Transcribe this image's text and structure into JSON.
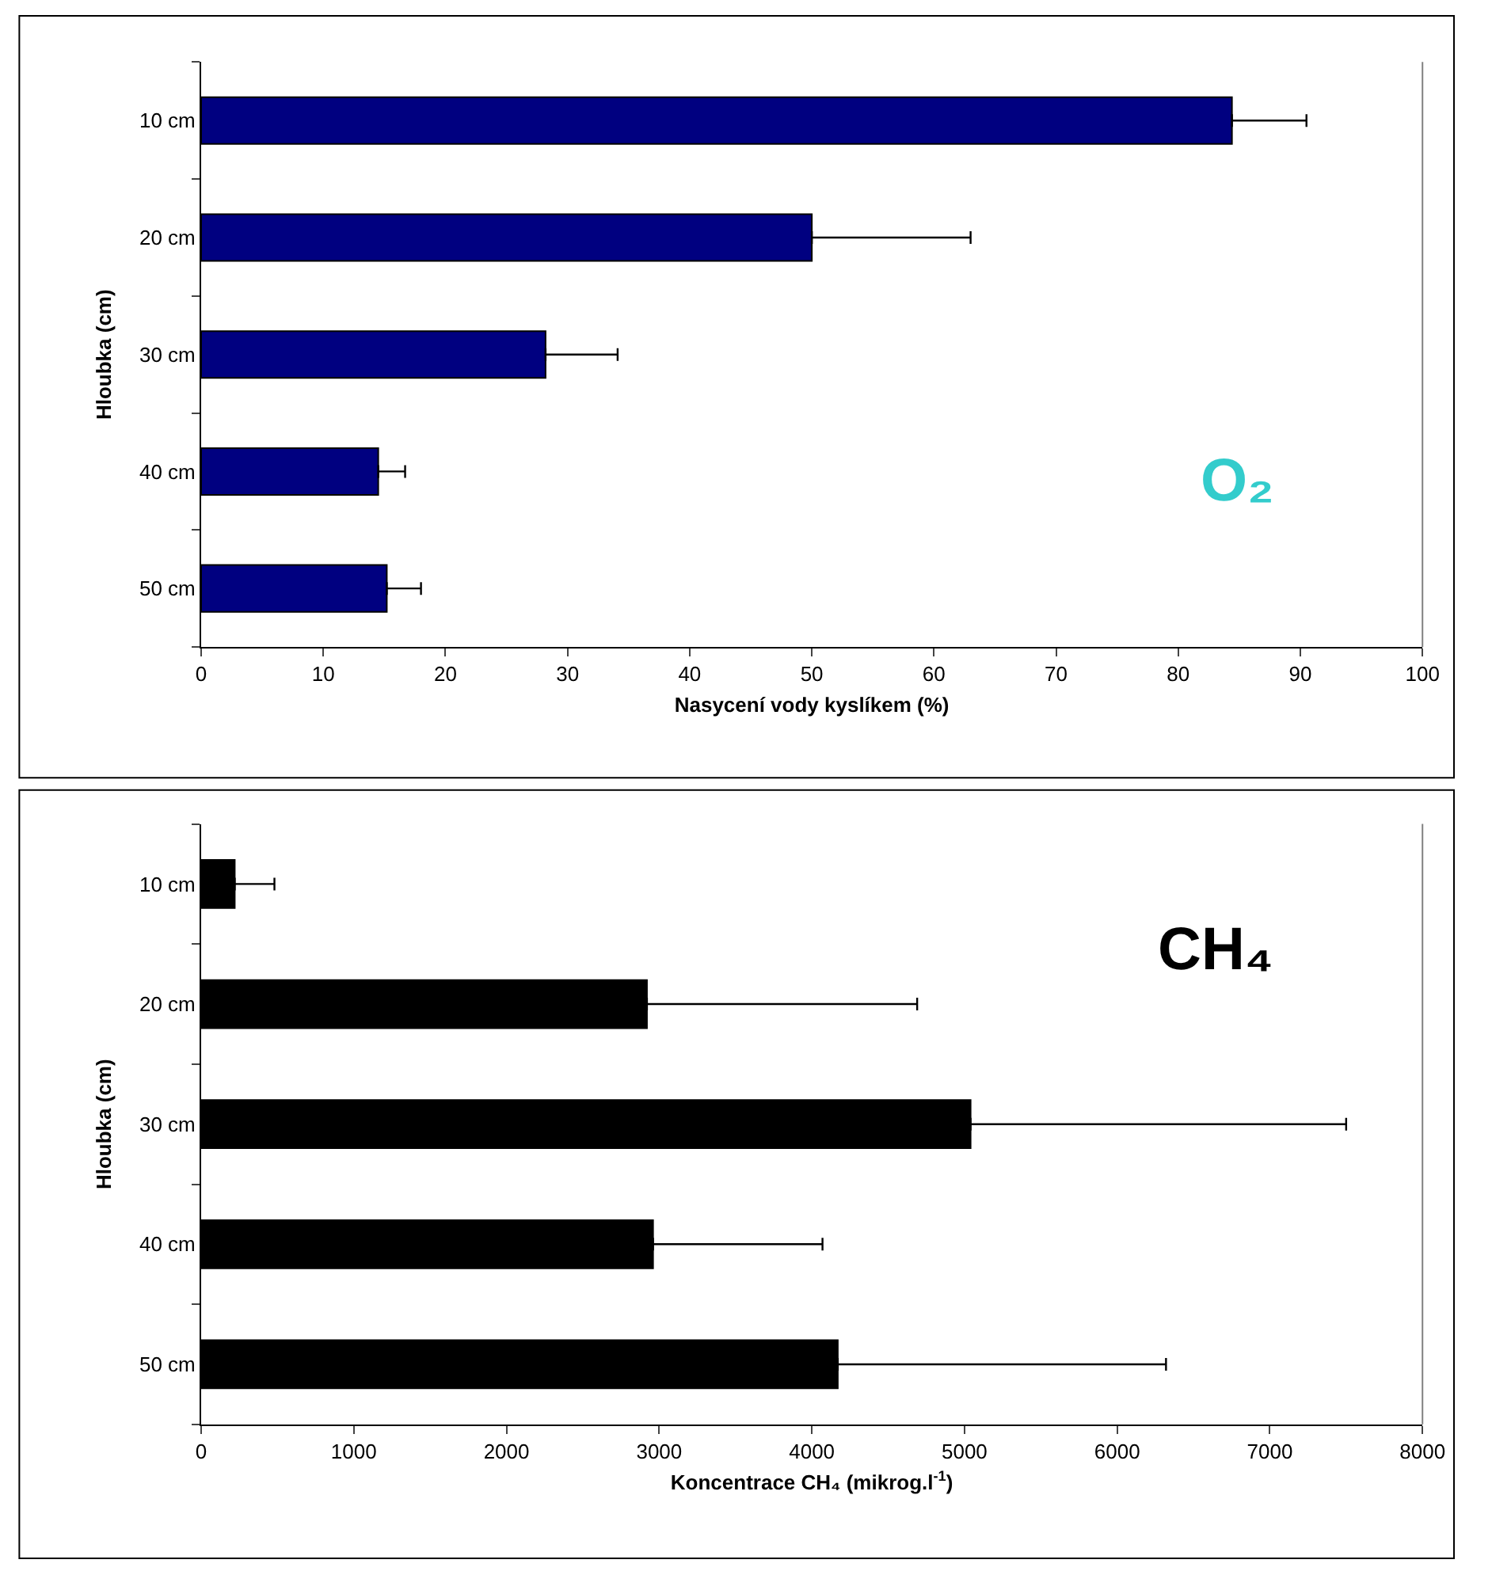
{
  "chart_data": [
    {
      "type": "bar",
      "orientation": "horizontal",
      "categories": [
        "10 cm",
        "20 cm",
        "30 cm",
        "40 cm",
        "50 cm"
      ],
      "values": [
        84.4,
        50.0,
        28.2,
        14.5,
        15.2
      ],
      "errors": [
        [
          84.4,
          90.5
        ],
        [
          50.0,
          63.0
        ],
        [
          28.2,
          34.1
        ],
        [
          14.5,
          16.7
        ],
        [
          15.2,
          18.0
        ]
      ],
      "color": "#000080",
      "xlim": [
        0,
        100
      ],
      "xticks": [
        0,
        10,
        20,
        30,
        40,
        50,
        60,
        70,
        80,
        90,
        100
      ],
      "xlabel": "Nasycení vody kyslíkem (%)",
      "ylabel": "Hloubka (cm)",
      "annotations": [
        "O₂"
      ]
    },
    {
      "type": "bar",
      "orientation": "horizontal",
      "categories": [
        "10 cm",
        "20 cm",
        "30 cm",
        "40 cm",
        "50 cm"
      ],
      "values": [
        220,
        2920,
        5040,
        2960,
        4170
      ],
      "errors": [
        [
          220,
          480
        ],
        [
          2920,
          4690
        ],
        [
          5040,
          7500
        ],
        [
          2960,
          4070
        ],
        [
          4170,
          6320
        ]
      ],
      "color": "#000000",
      "xlim": [
        0,
        8000
      ],
      "xticks": [
        0,
        1000,
        2000,
        3000,
        4000,
        5000,
        6000,
        7000,
        8000
      ],
      "xlabel": "Koncentrace CH₄ (mikrog.l$^{-1}$)",
      "ylabel": "Hloubka (cm)",
      "annotations": [
        "CH₄"
      ]
    }
  ]
}
